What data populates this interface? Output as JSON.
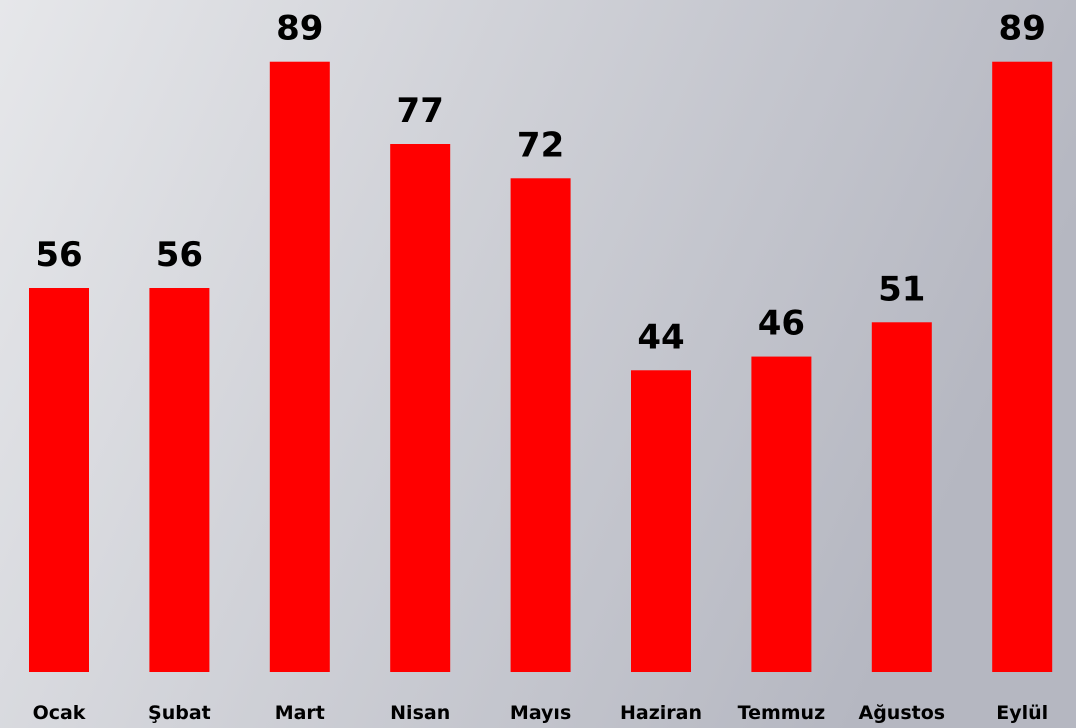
{
  "chart_data": {
    "type": "bar",
    "categories": [
      "Ocak",
      "Şubat",
      "Mart",
      "Nisan",
      "Mayıs",
      "Haziran",
      "Temmuz",
      "Ağustos",
      "Eylül"
    ],
    "values": [
      56,
      56,
      89,
      77,
      72,
      44,
      46,
      51,
      89
    ],
    "color": "#ff0000",
    "ylim": [
      0,
      98
    ]
  }
}
